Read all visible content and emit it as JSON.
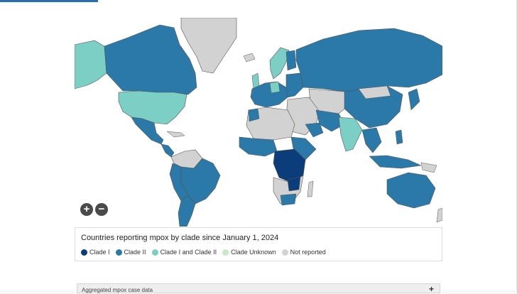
{
  "legend": {
    "title": "Countries reporting mpox by clade since January 1, 2024",
    "items": [
      {
        "label": "Clade I",
        "color": "#0b3d7a"
      },
      {
        "label": "Clade II",
        "color": "#2a79a8"
      },
      {
        "label": "Clade I and Clade II",
        "color": "#7ccfc4"
      },
      {
        "label": "Clade Unknown",
        "color": "#c9e8c8"
      },
      {
        "label": "Not reported",
        "color": "#d2d2d2"
      }
    ]
  },
  "zoom": {
    "in_label": "+",
    "out_label": "−"
  },
  "accordion": {
    "label": "Aggregated mpox case data",
    "toggle": "+"
  },
  "colors": {
    "clade1": "#0b3d7a",
    "clade2": "#2a79a8",
    "both": "#7ccfc4",
    "unknown": "#c9e8c8",
    "none": "#d2d2d2"
  }
}
